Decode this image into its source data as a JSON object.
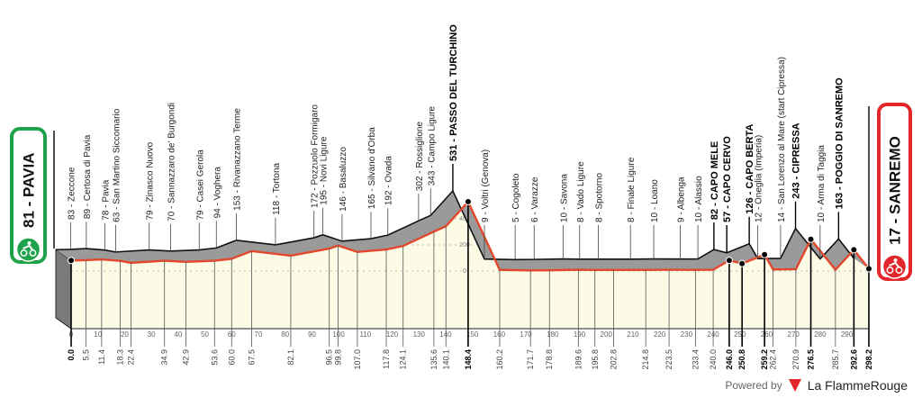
{
  "chart_data": {
    "type": "area",
    "title": "",
    "xlabel": "",
    "ylabel": "",
    "xlim": [
      0,
      298.2
    ],
    "ylim": [
      0,
      531
    ],
    "grid": true,
    "x_ticks": [
      0,
      10,
      20,
      30,
      40,
      50,
      60,
      70,
      80,
      90,
      100,
      110,
      120,
      130,
      140,
      150,
      160,
      170,
      180,
      190,
      200,
      210,
      220,
      230,
      240,
      250,
      260,
      270,
      280,
      290
    ],
    "y_ticks": [
      0,
      200,
      400
    ],
    "start": {
      "label": "81 - PAVIA",
      "km": 0.0,
      "alt": 81,
      "color": "#1ea34a"
    },
    "finish": {
      "label": "17 - SANREMO",
      "km": 298.2,
      "alt": 17,
      "color": "#e3262b"
    },
    "points": [
      {
        "km": 0.0,
        "alt": 81,
        "label": "",
        "bold": true
      },
      {
        "km": 5.5,
        "alt": 83,
        "label": "83 - Zeccone",
        "bold": false
      },
      {
        "km": 11.4,
        "alt": 89,
        "label": "89 - Certosa di Pavia",
        "bold": false
      },
      {
        "km": 18.3,
        "alt": 78,
        "label": "78 - Pavia",
        "bold": false
      },
      {
        "km": 22.4,
        "alt": 63,
        "label": "63 - San Martino Siccomario",
        "bold": false
      },
      {
        "km": 34.9,
        "alt": 79,
        "label": "79 - Zinasco Nuovo",
        "bold": false
      },
      {
        "km": 42.9,
        "alt": 70,
        "label": "70 - Sannazzaro de' Burgondi",
        "bold": false
      },
      {
        "km": 53.6,
        "alt": 79,
        "label": "79 - Casei Gerola",
        "bold": false
      },
      {
        "km": 60.0,
        "alt": 94,
        "label": "94 - Voghera",
        "bold": false
      },
      {
        "km": 67.5,
        "alt": 153,
        "label": "153 - Rivanazzano Terme",
        "bold": false
      },
      {
        "km": 82.1,
        "alt": 118,
        "label": "118 - Tortona",
        "bold": false
      },
      {
        "km": 96.5,
        "alt": 172,
        "label": "172 - Pozzuolo Formigaro",
        "bold": false
      },
      {
        "km": 99.8,
        "alt": 195,
        "label": "195 - Novi Ligure",
        "bold": false
      },
      {
        "km": 107.0,
        "alt": 146,
        "label": "146 - Basaluzzo",
        "bold": false
      },
      {
        "km": 117.8,
        "alt": 165,
        "label": "165 - Silvano d'Orba",
        "bold": false
      },
      {
        "km": 124.1,
        "alt": 192,
        "label": "192 - Ovada",
        "bold": false
      },
      {
        "km": 135.6,
        "alt": 302,
        "label": "302 - Rossiglione",
        "bold": false
      },
      {
        "km": 140.1,
        "alt": 343,
        "label": "343 - Campo Ligure",
        "bold": false
      },
      {
        "km": 148.4,
        "alt": 531,
        "label": "531 - PASSO DEL TURCHINO",
        "bold": true
      },
      {
        "km": 160.2,
        "alt": 9,
        "label": "9 - Voltri (Genova)",
        "bold": false
      },
      {
        "km": 171.7,
        "alt": 5,
        "label": "5 - Cogoleto",
        "bold": false
      },
      {
        "km": 178.8,
        "alt": 6,
        "label": "6 - Varazze",
        "bold": false
      },
      {
        "km": 189.6,
        "alt": 10,
        "label": "10 - Savona",
        "bold": false
      },
      {
        "km": 195.8,
        "alt": 8,
        "label": "8 - Vado Ligure",
        "bold": false
      },
      {
        "km": 202.8,
        "alt": 8,
        "label": "8 - Spotorno",
        "bold": false
      },
      {
        "km": 214.8,
        "alt": 8,
        "label": "8 - Finale Ligure",
        "bold": false
      },
      {
        "km": 223.5,
        "alt": 10,
        "label": "10 - Loano",
        "bold": false
      },
      {
        "km": 233.4,
        "alt": 9,
        "label": "9 - Albenga",
        "bold": false
      },
      {
        "km": 240.0,
        "alt": 10,
        "label": "10 - Alassio",
        "bold": false
      },
      {
        "km": 246.0,
        "alt": 82,
        "label": "82 - CAPO MELE",
        "bold": true
      },
      {
        "km": 250.8,
        "alt": 57,
        "label": "57 - CAPO CERVO",
        "bold": true
      },
      {
        "km": 259.2,
        "alt": 126,
        "label": "126 - CAPO BERTA",
        "bold": true
      },
      {
        "km": 262.4,
        "alt": 12,
        "label": "12 - Oneglia (Imperia)",
        "bold": false
      },
      {
        "km": 270.9,
        "alt": 14,
        "label": "14 - San Lorenzo al Mare (start Cipressa)",
        "bold": false
      },
      {
        "km": 276.5,
        "alt": 243,
        "label": "243 - CIPRESSA",
        "bold": true
      },
      {
        "km": 285.7,
        "alt": 10,
        "label": "10 - Arma di Taggia",
        "bold": false
      },
      {
        "km": 292.6,
        "alt": 163,
        "label": "163 - POGGIO DI SANREMO",
        "bold": true
      },
      {
        "km": 298.2,
        "alt": 17,
        "label": "",
        "bold": true
      }
    ],
    "colors": {
      "profile_line": "#e4472c",
      "surface": "#9a9a9a",
      "front_face": "#fbfbe6",
      "side_face": "#7a7a7a"
    }
  },
  "footer": {
    "powered_by": "Powered by",
    "brand": "La FlammeRouge",
    "logo_number": "1"
  }
}
